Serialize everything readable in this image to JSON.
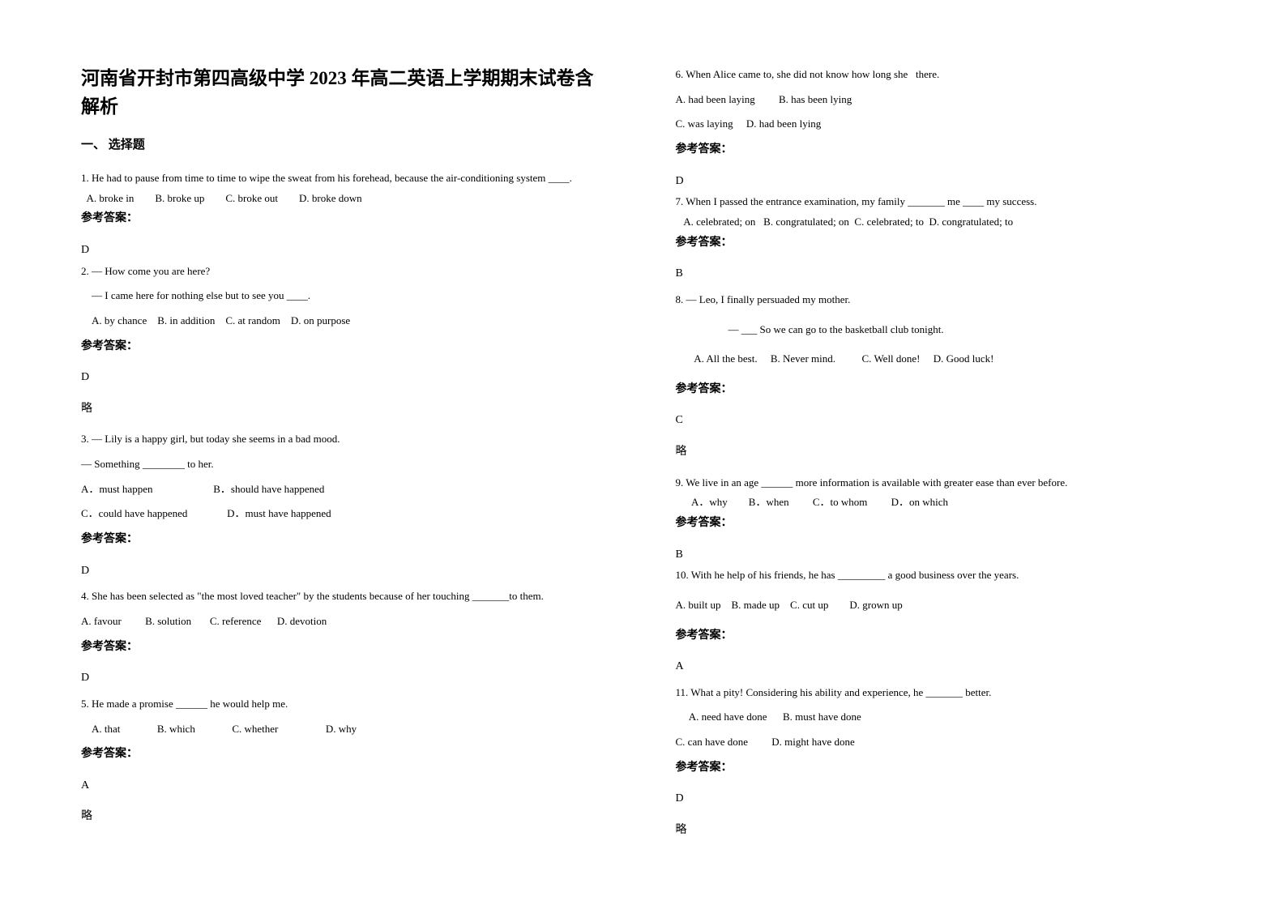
{
  "title": "河南省开封市第四高级中学 2023 年高二英语上学期期末试卷含解析",
  "section_heading": "一、 选择题",
  "questions": {
    "q1": {
      "text": "1. He had to pause from time to time to wipe the sweat from his forehead, because the air-conditioning system ____.",
      "options": "  A. broke in        B. broke up        C. broke out        D. broke down",
      "answer_label": "参考答案：",
      "answer": "D"
    },
    "q2": {
      "text1": "2. — How come you are here?",
      "text2": "    — I came here for nothing else but to see you ____.",
      "options": "    A. by chance    B. in addition    C. at random    D. on purpose",
      "answer_label": "参考答案：",
      "answer": "D",
      "note": "略"
    },
    "q3": {
      "text1": "3. — Lily is a happy girl, but today she seems in a bad mood.",
      "text2": "— Something ________ to her.",
      "options1": "A．must happen                       B．should have happened",
      "options2": "C．could have happened               D．must have happened",
      "answer_label": "参考答案：",
      "answer": "D"
    },
    "q4": {
      "text": "4. She has been selected as \"the most loved teacher\" by the students because of her touching _______to them.",
      "options": "A. favour         B. solution       C. reference      D. devotion",
      "answer_label": "参考答案：",
      "answer": "D"
    },
    "q5": {
      "text": "5. He made a promise ______ he would help me.",
      "options": "    A. that              B. which              C. whether                  D. why",
      "answer_label": "参考答案：",
      "answer": "A",
      "note": "略"
    },
    "q6": {
      "text": "6. When Alice came to, she did not know how long she   there.",
      "options1": "A. had been laying         B. has been lying",
      "options2": "C. was laying     D. had been lying",
      "answer_label": "参考答案：",
      "answer": "D"
    },
    "q7": {
      "text": "7. When I passed the entrance examination, my family _______ me ____ my success.",
      "options": "   A. celebrated; on   B. congratulated; on  C. celebrated; to  D. congratulated; to",
      "answer_label": "参考答案：",
      "answer": "B"
    },
    "q8": {
      "text1": "8. — Leo, I finally persuaded my mother.",
      "text2": "                    — ___ So we can go to the basketball club tonight.",
      "options": "       A. All the best.     B. Never mind.          C. Well done!     D. Good luck!",
      "answer_label": "参考答案：",
      "answer": "C",
      "note": "略"
    },
    "q9": {
      "text": "9. We live in an age ______ more information is available with greater ease than ever before.",
      "options": "      A．why        B．when         C．to whom         D．on which",
      "answer_label": "参考答案：",
      "answer": "B"
    },
    "q10": {
      "text": "10. With he help of his friends, he has _________ a good business over the years.",
      "options": "A. built up    B. made up    C. cut up        D. grown up",
      "answer_label": "参考答案：",
      "answer": "A"
    },
    "q11": {
      "text": "11. What a pity! Considering his ability and experience, he _______ better.",
      "options1": "     A. need have done      B. must have done",
      "options2": "C. can have done         D. might have done",
      "answer_label": "参考答案：",
      "answer": "D",
      "note": "略"
    }
  }
}
